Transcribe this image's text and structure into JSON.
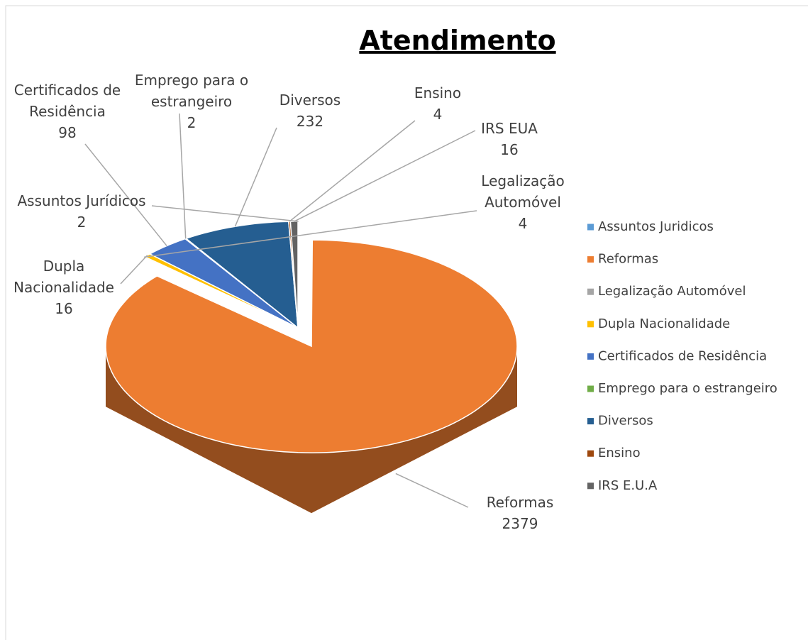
{
  "chart_data": {
    "type": "pie3d",
    "title": "Atendimento",
    "categories": [
      "Assuntos Juridicos",
      "Reformas",
      "Legalização Automóvel",
      "Dupla Nacionalidade",
      "Certificados de Residência",
      "Emprego para o estrangeiro",
      "Diversos",
      "Ensino",
      "IRS E.U.A"
    ],
    "data_label_names": [
      "Assuntos Jurídicos",
      "Reformas",
      "Legalização Automóvel",
      "Dupla Nacionalidade",
      "Certificados de Residência",
      "Emprego para o estrangeiro",
      "Diversos",
      "Ensino",
      "IRS EUA"
    ],
    "values": [
      2,
      2379,
      4,
      16,
      98,
      2,
      232,
      4,
      16
    ],
    "colors": [
      "#5b9bd5",
      "#ed7d31",
      "#a5a5a5",
      "#ffc000",
      "#4472c4",
      "#70ad47",
      "#255e91",
      "#9e480e",
      "#636363"
    ],
    "legend": "right"
  }
}
